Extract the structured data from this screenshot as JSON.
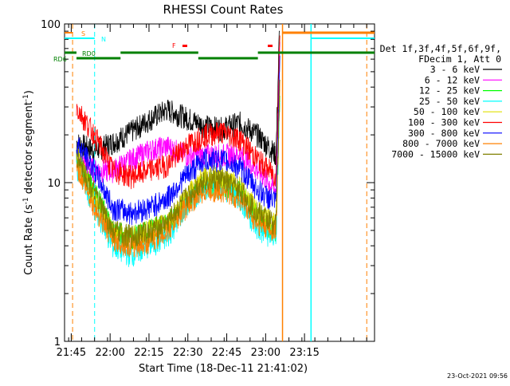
{
  "chart_data": {
    "type": "line",
    "title": "RHESSI Count Rates",
    "xlabel": "Start Time (18-Dec-11 21:41:02)",
    "ylabel": "Count Rate (s",
    "ylabel_sup1": "-1",
    "ylabel_mid": " detector segment",
    "ylabel_sup2": "-1",
    "ylabel_end": ")",
    "yscale": "log",
    "ylim": [
      1,
      100
    ],
    "y_ticks": [
      "1",
      "10",
      "100"
    ],
    "x_ticks": [
      "21:45",
      "22:00",
      "22:15",
      "22:30",
      "22:45",
      "23:00",
      "23:15"
    ],
    "xlim_minutes": [
      21.4,
      141.0
    ],
    "legend_header": [
      "Det 1f,3f,4f,5f,6f,9f,",
      "FDecim 1, Att 0"
    ],
    "series": [
      {
        "name": "3 - 6 keV",
        "color": "#000000",
        "values": [
          18,
          16,
          18,
          21,
          25,
          29,
          26,
          23,
          22,
          24,
          20,
          15
        ]
      },
      {
        "name": "6 - 12 keV",
        "color": "#ff00ff",
        "values": [
          14,
          12,
          12,
          14,
          16,
          17,
          15,
          15,
          15,
          15,
          12,
          9
        ]
      },
      {
        "name": "12 - 25 keV",
        "color": "#00ff00",
        "values": [
          14,
          9,
          5,
          4.5,
          5,
          5.5,
          7.5,
          10,
          10,
          9,
          6,
          5
        ]
      },
      {
        "name": "25 - 50 keV",
        "color": "#00ffff",
        "values": [
          13,
          7,
          4,
          3.5,
          4,
          4.5,
          7,
          9.5,
          9.5,
          8,
          5,
          4.5
        ]
      },
      {
        "name": "50 - 100 keV",
        "color": "#e0e000",
        "values": [
          15,
          8,
          5,
          4.5,
          5,
          5.5,
          8,
          11,
          11,
          9.5,
          6.5,
          5.5
        ]
      },
      {
        "name": "100 - 300 keV",
        "color": "#ff0000",
        "values": [
          30,
          20,
          12,
          11,
          12,
          13,
          17,
          20,
          21,
          19,
          14,
          11
        ]
      },
      {
        "name": "300 - 800 keV",
        "color": "#0000ff",
        "values": [
          18,
          12,
          7,
          6.5,
          7,
          8,
          11,
          14,
          14,
          12.5,
          9,
          7.5
        ]
      },
      {
        "name": "800 - 7000 keV",
        "color": "#ff8000",
        "values": [
          13,
          7,
          4.5,
          4,
          4.3,
          5,
          7,
          9,
          9,
          8,
          5.5,
          5
        ]
      },
      {
        "name": "7000 - 15000 keV",
        "color": "#808000",
        "values": [
          15,
          8.5,
          5,
          4.6,
          5,
          5.6,
          8,
          10.5,
          10.5,
          9,
          6.5,
          5.5
        ]
      }
    ],
    "series_x_minutes": [
      26,
      33,
      40,
      47,
      54,
      61,
      68,
      75,
      82,
      89,
      96,
      103
    ],
    "flags": {
      "S_label": "S",
      "N_label": "N",
      "F_label": "F",
      "RD0_label": "RD0",
      "RD6_label": "RD6"
    }
  },
  "footer_date": "23-Oct-2021 09:56"
}
